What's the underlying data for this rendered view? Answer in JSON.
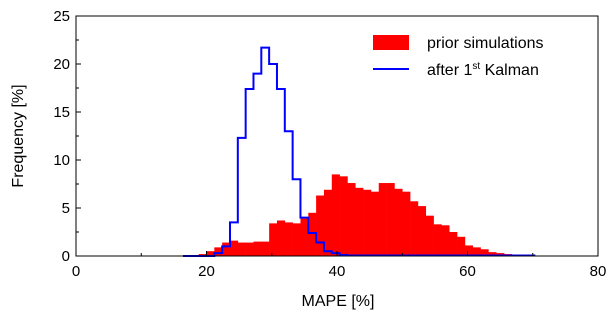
{
  "chart_data": {
    "type": "histogram",
    "xlabel": "MAPE [%]",
    "ylabel": "Frequency [%]",
    "xlim": [
      0,
      80
    ],
    "ylim": [
      0,
      25
    ],
    "xticks": [
      0,
      20,
      40,
      60,
      80
    ],
    "yticks": [
      0,
      5,
      10,
      15,
      20,
      25
    ],
    "legend_position": "top-right",
    "bin_width": 1.2,
    "series": [
      {
        "name": "prior simulations",
        "style": "filled-bar",
        "color": "#ff0000",
        "bin_starts": [
          16.4,
          17.6,
          18.8,
          20.0,
          21.2,
          22.4,
          23.6,
          24.8,
          26.0,
          27.2,
          28.4,
          29.6,
          30.8,
          32.0,
          33.2,
          34.4,
          35.6,
          36.8,
          38.0,
          39.2,
          40.4,
          41.6,
          42.8,
          44.0,
          45.2,
          46.4,
          47.6,
          48.8,
          50.0,
          51.2,
          52.4,
          53.6,
          54.8,
          56.0,
          57.2,
          58.4,
          59.6,
          60.8,
          62.0,
          63.2,
          64.4,
          65.6,
          66.8,
          68.0,
          69.2
        ],
        "values": [
          0.1,
          0.1,
          0.2,
          0.5,
          0.9,
          1.4,
          1.6,
          1.4,
          1.4,
          1.5,
          1.5,
          3.4,
          3.7,
          3.5,
          3.4,
          3.9,
          4.5,
          6.3,
          6.9,
          8.5,
          8.3,
          7.6,
          7.1,
          6.9,
          6.7,
          7.6,
          7.6,
          7.0,
          6.7,
          5.7,
          5.2,
          4.2,
          3.3,
          3.2,
          2.5,
          2.0,
          1.1,
          0.9,
          0.7,
          0.4,
          0.3,
          0.2,
          0.1,
          0.05,
          0.05
        ]
      },
      {
        "name": "after 1st Kalman",
        "legend_label_main": "after 1",
        "legend_label_sup": "st",
        "legend_label_tail": " Kalman",
        "style": "step-outline",
        "color": "#0000ff",
        "bin_starts": [
          16.4,
          17.6,
          18.8,
          20.0,
          21.2,
          22.4,
          23.6,
          24.8,
          26.0,
          27.2,
          28.4,
          29.6,
          30.8,
          32.0,
          33.2,
          34.4,
          35.6,
          36.8,
          38.0,
          39.2,
          40.4,
          41.6,
          42.8,
          44.0,
          45.2,
          46.4,
          47.6,
          48.8,
          50.0,
          51.2,
          52.4,
          53.6,
          54.8,
          56.0,
          57.2,
          58.4,
          59.6,
          60.8,
          62.0,
          63.2,
          64.4,
          65.6,
          66.8,
          68.0,
          69.2
        ],
        "values": [
          0.0,
          0.0,
          0.0,
          0.0,
          0.3,
          1.0,
          3.5,
          12.3,
          17.4,
          19.0,
          21.7,
          20.0,
          17.4,
          13.0,
          8.0,
          4.0,
          2.4,
          1.4,
          0.5,
          0.3,
          0.1,
          0.05,
          0.05,
          0.05,
          0.05,
          0.05,
          0.05,
          0.05,
          0.05,
          0.05,
          0.05,
          0.05,
          0.05,
          0.05,
          0.05,
          0.05,
          0.05,
          0.05,
          0.05,
          0.05,
          0.05,
          0.05,
          0.05,
          0.05,
          0.05
        ]
      }
    ]
  }
}
